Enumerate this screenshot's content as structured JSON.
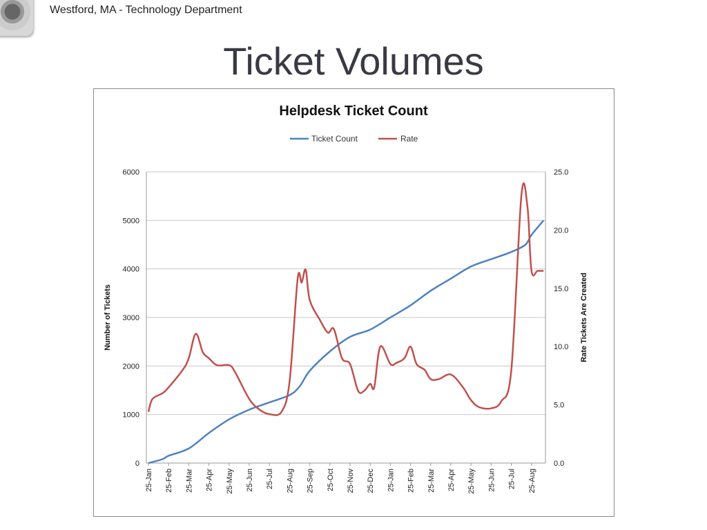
{
  "header": {
    "organization": "Westford, MA  - Technology Department",
    "logo": "Town of Westford seal"
  },
  "slide": {
    "title": "Ticket Volumes"
  },
  "chart_data": {
    "type": "line",
    "title": "Helpdesk Ticket Count",
    "legend": {
      "placement": "top",
      "entries": [
        "Ticket Count",
        "Rate"
      ]
    },
    "x_tick_labels": [
      "25-Jan",
      "25-Feb",
      "25-Mar",
      "25-Apr",
      "25-May",
      "25-Jun",
      "25-Jul",
      "25-Aug",
      "25-Sep",
      "25-Oct",
      "25-Nov",
      "25-Dec",
      "25-Jan",
      "25-Feb",
      "25-Mar",
      "25-Apr",
      "25-May",
      "25-Jun",
      "25-Jul",
      "25-Aug"
    ],
    "ylabel": "Number of Tickets",
    "y2label": "Rate Tickets Are Created",
    "ylim": [
      0,
      6000
    ],
    "y_ticks": [
      "0",
      "1000",
      "2000",
      "3000",
      "4000",
      "5000",
      "6000"
    ],
    "y2lim": [
      0,
      25
    ],
    "y2_ticks": [
      "0.0",
      "5.0",
      "10.0",
      "15.0",
      "20.0",
      "25.0"
    ],
    "grid": true,
    "colors": {
      "Ticket Count": "#4f81bd",
      "Rate": "#c0504d"
    },
    "series": [
      {
        "name": "Ticket Count",
        "axis": "left",
        "x": [
          0,
          0.7,
          1,
          2,
          3,
          4,
          5,
          6,
          7,
          7.5,
          8,
          9,
          10,
          11,
          12,
          13,
          14,
          15,
          16,
          17,
          18,
          18.7,
          19,
          19.6
        ],
        "values": [
          0,
          80,
          150,
          300,
          620,
          900,
          1100,
          1250,
          1400,
          1580,
          1900,
          2300,
          2600,
          2750,
          3000,
          3250,
          3550,
          3800,
          4050,
          4200,
          4350,
          4500,
          4700,
          5000
        ]
      },
      {
        "name": "Rate",
        "axis": "right",
        "x": [
          0,
          0.2,
          0.7,
          1,
          1.7,
          2,
          2.35,
          2.7,
          3,
          3.4,
          4,
          4.3,
          5,
          5.5,
          6,
          6.6,
          7,
          7.4,
          7.6,
          7.8,
          8,
          8.5,
          8.9,
          9.2,
          9.6,
          10,
          10.4,
          10.7,
          11,
          11.2,
          11.5,
          12,
          12.3,
          12.7,
          13,
          13.3,
          13.7,
          14,
          14.4,
          15,
          15.6,
          16,
          16.4,
          17,
          17.5,
          18,
          18.5,
          18.8,
          19,
          19.3,
          19.6
        ],
        "values": [
          4.4,
          5.5,
          6,
          6.5,
          8,
          9,
          11.1,
          9.5,
          9,
          8.4,
          8.4,
          7.8,
          5.5,
          4.6,
          4.2,
          4.4,
          7,
          15.8,
          15.5,
          16.6,
          14,
          12.3,
          11.2,
          11.5,
          9,
          8.5,
          6.2,
          6.2,
          6.8,
          6.5,
          10,
          8.5,
          8.6,
          9,
          10,
          8.5,
          8,
          7.2,
          7.2,
          7.6,
          6.5,
          5.4,
          4.8,
          4.7,
          5.3,
          8,
          23,
          22,
          16.5,
          16.5,
          16.5
        ]
      }
    ]
  }
}
